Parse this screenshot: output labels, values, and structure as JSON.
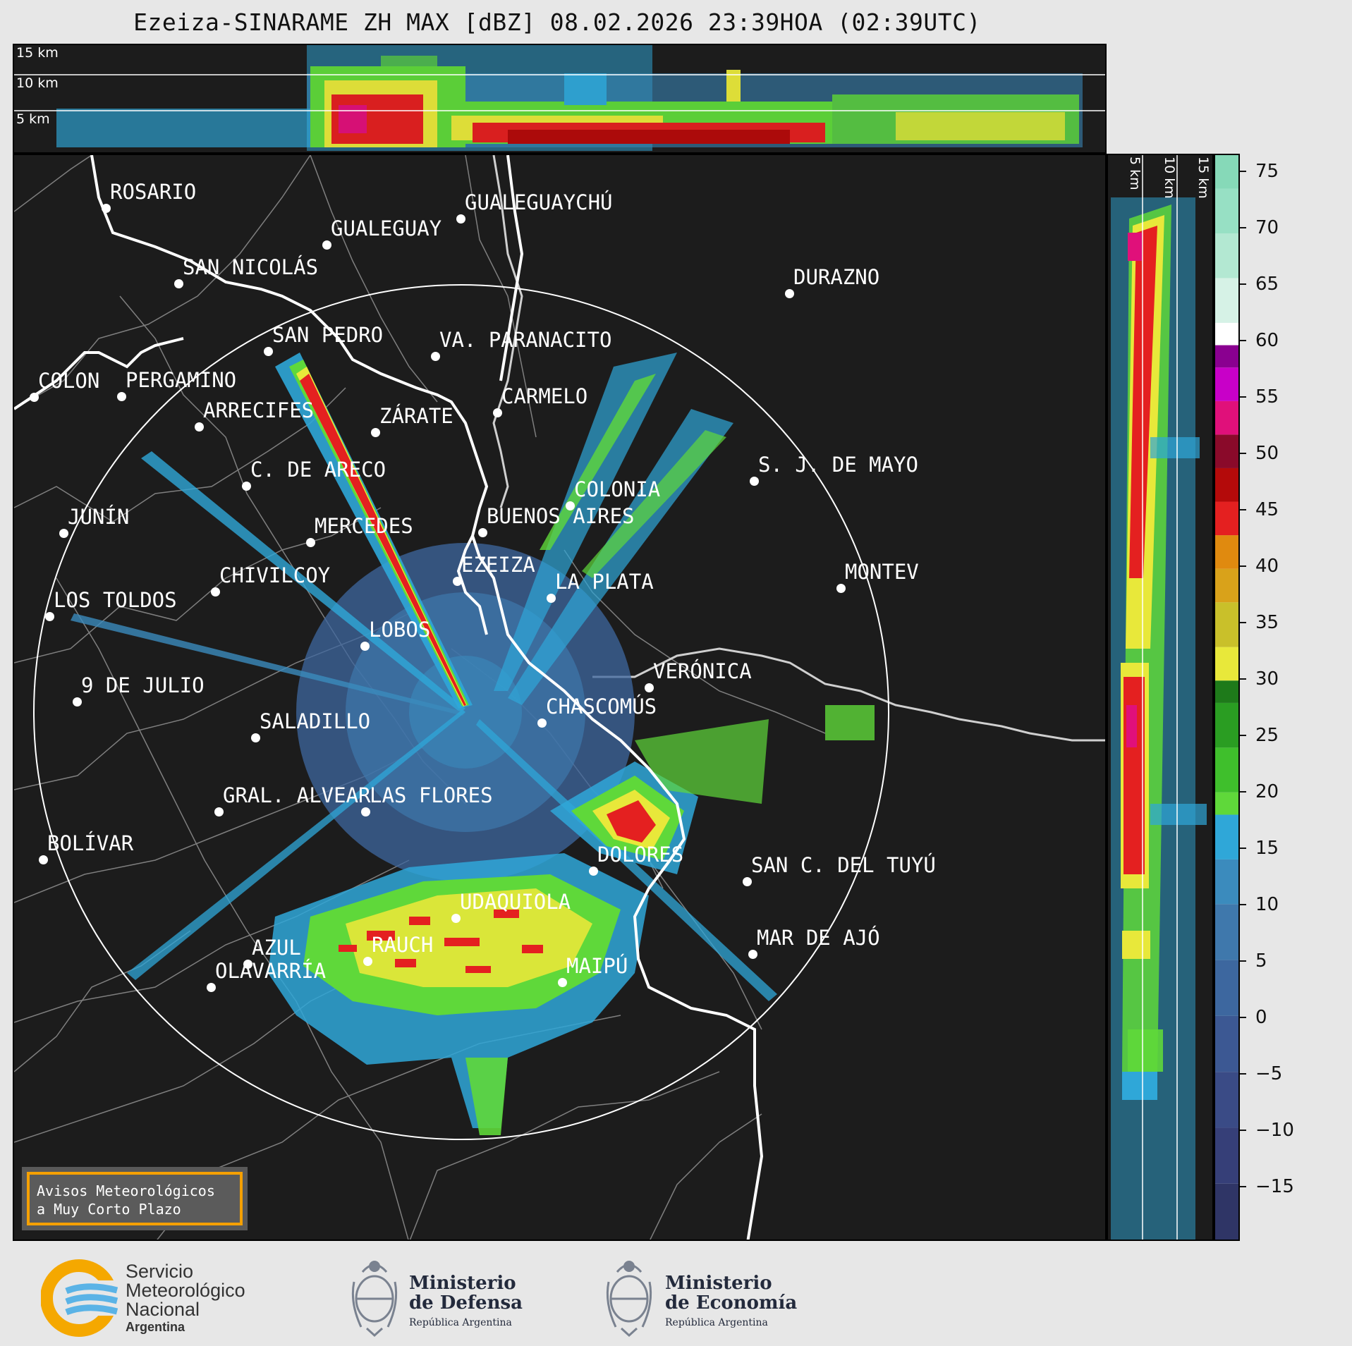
{
  "title": "Ezeiza-SINARAME ZH MAX [dBZ] 08.02.2026 23:39HOA (02:39UTC)",
  "top_panel": {
    "height_labels": [
      "15 km",
      "10 km",
      "5 km"
    ]
  },
  "side_panel": {
    "height_labels": [
      "5 km",
      "10 km",
      "15 km"
    ]
  },
  "colorbar": {
    "unit": "dBZ",
    "ticks": [
      "75",
      "70",
      "65",
      "60",
      "55",
      "50",
      "45",
      "40",
      "35",
      "30",
      "25",
      "20",
      "15",
      "10",
      "5",
      "0",
      "−5",
      "−10",
      "−15"
    ],
    "range": [
      -20,
      77
    ],
    "bands": [
      {
        "from": -20,
        "to": -15,
        "color": "#2f3566"
      },
      {
        "from": -15,
        "to": -10,
        "color": "#363f78"
      },
      {
        "from": -10,
        "to": -5,
        "color": "#3a4b86"
      },
      {
        "from": -5,
        "to": 0,
        "color": "#3c5893"
      },
      {
        "from": 0,
        "to": 5,
        "color": "#3d679f"
      },
      {
        "from": 5,
        "to": 10,
        "color": "#3f78ac"
      },
      {
        "from": 10,
        "to": 14,
        "color": "#3b8bbd"
      },
      {
        "from": 14,
        "to": 18,
        "color": "#2fa7d8"
      },
      {
        "from": 18,
        "to": 20,
        "color": "#5fd83a"
      },
      {
        "from": 20,
        "to": 24,
        "color": "#3fbf2c"
      },
      {
        "from": 24,
        "to": 28,
        "color": "#2a9d22"
      },
      {
        "from": 28,
        "to": 30,
        "color": "#1e7a1a"
      },
      {
        "from": 30,
        "to": 33,
        "color": "#e8e83a"
      },
      {
        "from": 33,
        "to": 37,
        "color": "#c9c02a"
      },
      {
        "from": 37,
        "to": 40,
        "color": "#d9a21a"
      },
      {
        "from": 40,
        "to": 43,
        "color": "#e08a0f"
      },
      {
        "from": 43,
        "to": 46,
        "color": "#e42020"
      },
      {
        "from": 46,
        "to": 49,
        "color": "#b40a0a"
      },
      {
        "from": 49,
        "to": 52,
        "color": "#8a0a2a"
      },
      {
        "from": 52,
        "to": 55,
        "color": "#e0107a"
      },
      {
        "from": 55,
        "to": 58,
        "color": "#c800c8"
      },
      {
        "from": 58,
        "to": 60,
        "color": "#8a0090"
      },
      {
        "from": 60,
        "to": 62,
        "color": "#ffffff"
      },
      {
        "from": 62,
        "to": 66,
        "color": "#d6f2e6"
      },
      {
        "from": 66,
        "to": 70,
        "color": "#b3e8d2"
      },
      {
        "from": 70,
        "to": 74,
        "color": "#97e0c4"
      },
      {
        "from": 74,
        "to": 77,
        "color": "#86d9b8"
      }
    ]
  },
  "map": {
    "range_ring": "range-ring",
    "cities": [
      {
        "name": "ROSARIO"
      },
      {
        "name": "GUALEGUAYCHÚ"
      },
      {
        "name": "GUALEGUAY"
      },
      {
        "name": "SAN NICOLÁS"
      },
      {
        "name": "DURAZNO"
      },
      {
        "name": "SAN PEDRO"
      },
      {
        "name": "VA. PARANACITO"
      },
      {
        "name": "COLON"
      },
      {
        "name": "PERGAMINO"
      },
      {
        "name": "CARMELO"
      },
      {
        "name": "ARRECIFES"
      },
      {
        "name": "ZÁRATE"
      },
      {
        "name": "S. J. DE MAYO"
      },
      {
        "name": "C. DE ARECO"
      },
      {
        "name": "COLONIA"
      },
      {
        "name": "JUNÍN"
      },
      {
        "name": "BUENOS AIRES"
      },
      {
        "name": "MERCEDES"
      },
      {
        "name": "MONTEV"
      },
      {
        "name": "EZEIZA"
      },
      {
        "name": "CHIVILCOY"
      },
      {
        "name": "LA PLATA"
      },
      {
        "name": "LOS TOLDOS"
      },
      {
        "name": "LOBOS"
      },
      {
        "name": "VERÓNICA"
      },
      {
        "name": "9 DE JULIO"
      },
      {
        "name": "CHASCOMÚS"
      },
      {
        "name": "SALADILLO"
      },
      {
        "name": "GRAL. ALVEAR"
      },
      {
        "name": "LAS FLORES"
      },
      {
        "name": "BOLÍVAR"
      },
      {
        "name": "DOLORES"
      },
      {
        "name": "SAN C. DEL TUYÚ"
      },
      {
        "name": "UDAQUIOLA"
      },
      {
        "name": "MAR DE AJÓ"
      },
      {
        "name": "AZUL"
      },
      {
        "name": "RAUCH"
      },
      {
        "name": "OLAVARRÍA"
      },
      {
        "name": "MAIPÚ"
      }
    ]
  },
  "notice": {
    "line1": "Avisos Meteorológicos",
    "line2": "a Muy Corto Plazo"
  },
  "footer": {
    "smn": {
      "line1": "Servicio",
      "line2": "Meteorológico",
      "line3": "Nacional",
      "line4": "Argentina"
    },
    "defensa": {
      "line1": "Ministerio",
      "line2": "de Defensa",
      "line3": "República Argentina"
    },
    "economia": {
      "line1": "Ministerio",
      "line2": "de Economía",
      "line3": "República Argentina"
    }
  }
}
